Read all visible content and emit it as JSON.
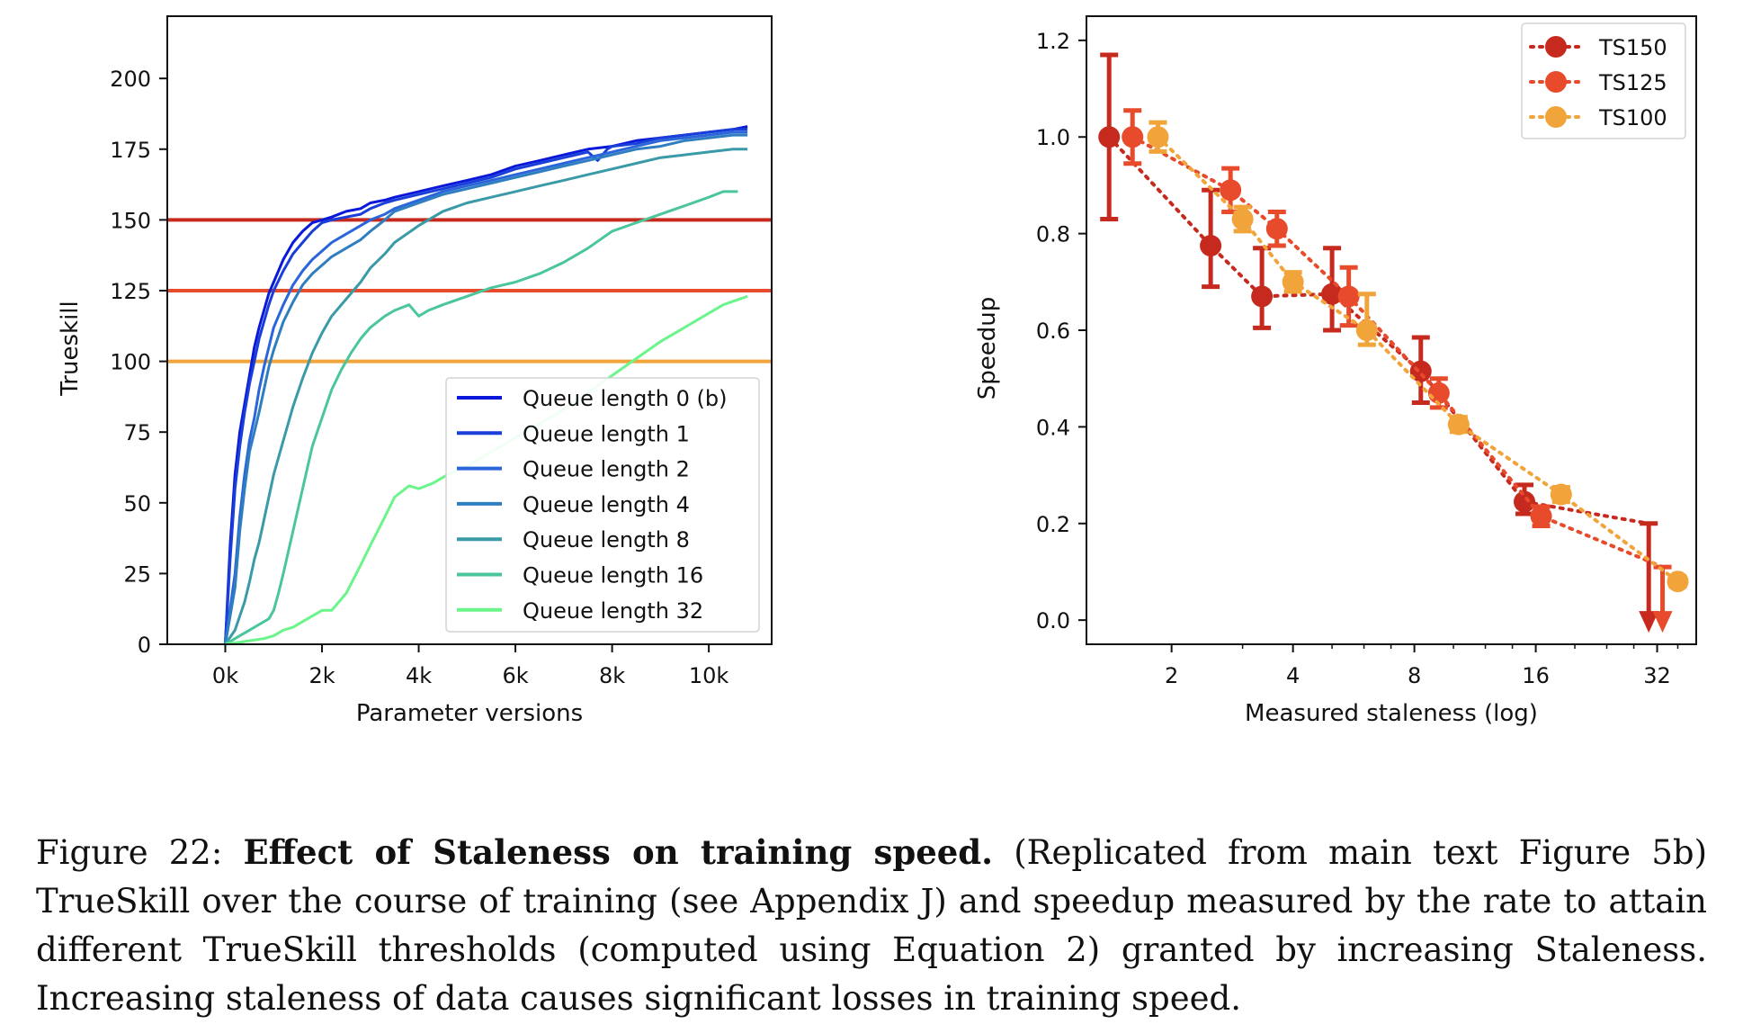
{
  "chart_data": [
    {
      "type": "line",
      "xlabel": "Parameter versions",
      "ylabel": "Trueskill",
      "xlim": [
        -1200,
        11300
      ],
      "ylim": [
        0,
        222
      ],
      "xticks": [
        0,
        2000,
        4000,
        6000,
        8000,
        10000
      ],
      "xtick_labels": [
        "0k",
        "2k",
        "4k",
        "6k",
        "8k",
        "10k"
      ],
      "yticks": [
        0,
        25,
        50,
        75,
        100,
        125,
        150,
        175,
        200
      ],
      "ytick_labels": [
        "0",
        "25",
        "50",
        "75",
        "100",
        "125",
        "150",
        "175",
        "200"
      ],
      "grid": false,
      "legend_position": "bottom-right",
      "hlines": [
        {
          "y": 150,
          "color": "#c62a1e"
        },
        {
          "y": 125,
          "color": "#e84a2c"
        },
        {
          "y": 100,
          "color": "#f0a43a"
        }
      ],
      "series": [
        {
          "name": "Queue length 0 (b)",
          "color": "#0a18d9",
          "x": [
            0,
            100,
            200,
            300,
            400,
            500,
            600,
            700,
            800,
            900,
            1000,
            1200,
            1400,
            1600,
            1800,
            2000,
            2200,
            2500,
            2800,
            3000,
            3300,
            3500,
            4000,
            4500,
            5000,
            5500,
            6000,
            6500,
            7000,
            7500,
            8000,
            8500,
            9000,
            9500,
            10000,
            10500,
            10800
          ],
          "y": [
            0,
            35,
            60,
            75,
            85,
            95,
            105,
            112,
            118,
            124,
            128,
            136,
            142,
            146,
            149,
            150,
            151,
            153,
            154,
            156,
            157,
            158,
            160,
            162,
            164,
            166,
            169,
            171,
            173,
            175,
            176,
            178,
            179,
            180,
            181,
            182,
            183
          ]
        },
        {
          "name": "Queue length 1",
          "color": "#1a3fd9",
          "x": [
            0,
            100,
            200,
            300,
            400,
            500,
            600,
            700,
            800,
            900,
            1000,
            1200,
            1400,
            1600,
            1800,
            2000,
            2200,
            2500,
            2800,
            3000,
            3300,
            3500,
            4000,
            4500,
            5000,
            5500,
            6000,
            6500,
            7000,
            7500,
            7700,
            7900,
            8000,
            8500,
            9000,
            9500,
            10000,
            10500,
            10800
          ],
          "y": [
            0,
            30,
            55,
            70,
            82,
            92,
            100,
            108,
            114,
            120,
            125,
            132,
            138,
            142,
            146,
            149,
            150,
            151,
            152,
            154,
            156,
            157,
            159,
            161,
            163,
            165,
            168,
            170,
            172,
            174,
            171,
            175,
            176,
            177,
            179,
            180,
            181,
            182,
            182
          ]
        },
        {
          "name": "Queue length 2",
          "color": "#2a66d9",
          "x": [
            0,
            200,
            300,
            400,
            500,
            600,
            700,
            800,
            900,
            1000,
            1200,
            1400,
            1600,
            1800,
            2000,
            2200,
            2500,
            2800,
            3000,
            3300,
            3500,
            4000,
            4500,
            5000,
            5500,
            6000,
            6500,
            7000,
            7500,
            8000,
            8500,
            9000,
            9500,
            10000,
            10500,
            10800
          ],
          "y": [
            0,
            25,
            45,
            60,
            72,
            80,
            90,
            98,
            105,
            112,
            120,
            127,
            132,
            136,
            139,
            142,
            145,
            148,
            150,
            152,
            154,
            157,
            160,
            162,
            164,
            166,
            168,
            170,
            172,
            174,
            176,
            178,
            179,
            180,
            181,
            181
          ]
        },
        {
          "name": "Queue length 4",
          "color": "#2f7ec0",
          "x": [
            0,
            200,
            300,
            400,
            500,
            600,
            700,
            800,
            900,
            1000,
            1200,
            1400,
            1600,
            1800,
            2000,
            2200,
            2500,
            2800,
            3000,
            3300,
            3500,
            4000,
            4500,
            5000,
            5500,
            6000,
            6500,
            7000,
            7500,
            8000,
            8500,
            9000,
            9500,
            10000,
            10500,
            10800
          ],
          "y": [
            0,
            20,
            40,
            55,
            68,
            75,
            82,
            90,
            98,
            104,
            114,
            121,
            127,
            131,
            134,
            137,
            140,
            143,
            146,
            150,
            153,
            156,
            159,
            161,
            163,
            165,
            167,
            169,
            171,
            173,
            175,
            176,
            178,
            179,
            180,
            180
          ]
        },
        {
          "name": "Queue length 8",
          "color": "#3a9aa7",
          "x": [
            0,
            200,
            400,
            500,
            600,
            700,
            800,
            900,
            1000,
            1200,
            1400,
            1600,
            1800,
            2000,
            2200,
            2500,
            2800,
            3000,
            3300,
            3500,
            4000,
            4500,
            5000,
            5500,
            6000,
            6500,
            7000,
            7500,
            8000,
            8500,
            9000,
            9500,
            10000,
            10500,
            10800
          ],
          "y": [
            0,
            5,
            15,
            22,
            30,
            36,
            44,
            52,
            60,
            72,
            84,
            94,
            103,
            110,
            116,
            122,
            128,
            133,
            138,
            142,
            148,
            153,
            156,
            158,
            160,
            162,
            164,
            166,
            168,
            170,
            172,
            173,
            174,
            175,
            175
          ]
        },
        {
          "name": "Queue length 16",
          "color": "#4bc69a",
          "x": [
            0,
            300,
            500,
            700,
            900,
            1000,
            1100,
            1200,
            1400,
            1600,
            1800,
            2000,
            2200,
            2400,
            2600,
            2800,
            3000,
            3300,
            3500,
            3800,
            4000,
            4200,
            4500,
            5000,
            5500,
            6000,
            6500,
            7000,
            7500,
            8000,
            8500,
            9000,
            9500,
            10000,
            10300,
            10600
          ],
          "y": [
            0,
            3,
            5,
            7,
            9,
            12,
            18,
            25,
            40,
            55,
            70,
            80,
            90,
            97,
            103,
            108,
            112,
            116,
            118,
            120,
            116,
            118,
            120,
            123,
            126,
            128,
            131,
            135,
            140,
            146,
            149,
            152,
            155,
            158,
            160,
            160
          ]
        },
        {
          "name": "Queue length 32",
          "color": "#6af58a",
          "x": [
            0,
            400,
            800,
            1000,
            1200,
            1400,
            1600,
            1800,
            2000,
            2200,
            2500,
            2800,
            3000,
            3300,
            3500,
            3800,
            4000,
            4300,
            4600,
            5000,
            5500,
            6000,
            6500,
            7000,
            7500,
            8000,
            8500,
            9000,
            9500,
            10000,
            10300,
            10800
          ],
          "y": [
            0,
            1,
            2,
            3,
            5,
            6,
            8,
            10,
            12,
            12,
            18,
            28,
            35,
            45,
            52,
            56,
            55,
            57,
            60,
            63,
            68,
            73,
            78,
            83,
            89,
            95,
            101,
            107,
            112,
            117,
            120,
            123
          ]
        }
      ]
    },
    {
      "type": "scatter",
      "xlabel": "Measured staleness (log)",
      "ylabel": "Speedup",
      "x_scale": "log2",
      "xlim": [
        1.23,
        40
      ],
      "ylim": [
        -0.05,
        1.25
      ],
      "xticks": [
        2,
        4,
        8,
        16,
        32
      ],
      "xtick_labels": [
        "2",
        "4",
        "8",
        "16",
        "32"
      ],
      "yticks": [
        0.0,
        0.2,
        0.4,
        0.6,
        0.8,
        1.0,
        1.2
      ],
      "ytick_labels": [
        "0.0",
        "0.2",
        "0.4",
        "0.6",
        "0.8",
        "1.0",
        "1.2"
      ],
      "grid": false,
      "legend_position": "top-right",
      "series": [
        {
          "name": "TS150",
          "color": "#c62a1e",
          "points": [
            {
              "x": 1.4,
              "y": 1.0,
              "err_low": 0.17,
              "err_high": 0.17
            },
            {
              "x": 2.5,
              "y": 0.775,
              "err_low": 0.085,
              "err_high": 0.115
            },
            {
              "x": 3.35,
              "y": 0.67,
              "err_low": 0.065,
              "err_high": 0.1
            },
            {
              "x": 5.0,
              "y": 0.675,
              "err_low": 0.075,
              "err_high": 0.095
            },
            {
              "x": 8.3,
              "y": 0.515,
              "err_low": 0.065,
              "err_high": 0.07
            },
            {
              "x": 15.0,
              "y": 0.245,
              "err_low": 0.025,
              "err_high": 0.035
            },
            {
              "x": 30.5,
              "y": 0.2,
              "arrow": "down"
            }
          ]
        },
        {
          "name": "TS125",
          "color": "#e84a2c",
          "points": [
            {
              "x": 1.6,
              "y": 1.0,
              "err_low": 0.055,
              "err_high": 0.055
            },
            {
              "x": 2.8,
              "y": 0.89,
              "err_low": 0.045,
              "err_high": 0.045
            },
            {
              "x": 3.65,
              "y": 0.81,
              "err_low": 0.035,
              "err_high": 0.035
            },
            {
              "x": 5.5,
              "y": 0.67,
              "err_low": 0.06,
              "err_high": 0.06
            },
            {
              "x": 9.2,
              "y": 0.47,
              "err_low": 0.03,
              "err_high": 0.03
            },
            {
              "x": 16.5,
              "y": 0.215,
              "err_low": 0.02,
              "err_high": 0.02
            },
            {
              "x": 33.0,
              "y": 0.11,
              "arrow": "down"
            }
          ]
        },
        {
          "name": "TS100",
          "color": "#f0a43a",
          "points": [
            {
              "x": 1.85,
              "y": 1.0,
              "err_low": 0.03,
              "err_high": 0.03
            },
            {
              "x": 3.0,
              "y": 0.83,
              "err_low": 0.025,
              "err_high": 0.025
            },
            {
              "x": 4.0,
              "y": 0.7,
              "err_low": 0.02,
              "err_high": 0.02
            },
            {
              "x": 6.1,
              "y": 0.6,
              "err_low": 0.03,
              "err_high": 0.075
            },
            {
              "x": 10.3,
              "y": 0.405,
              "err_low": 0.015,
              "err_high": 0.015
            },
            {
              "x": 18.5,
              "y": 0.26,
              "err_low": 0.015,
              "err_high": 0.015
            },
            {
              "x": 36.0,
              "y": 0.08,
              "err_low": 0.01,
              "err_high": 0.01
            }
          ]
        }
      ]
    }
  ],
  "caption": {
    "label": "Figure 22:",
    "title": "Effect of Staleness on training speed.",
    "body": "(Replicated from main text Figure 5b) TrueSkill over the course of training (see Appendix J) and speedup measured by the rate to attain different TrueSkill thresholds (computed using Equation 2) granted by increasing Staleness. Increasing staleness of data causes significant losses in training speed."
  }
}
